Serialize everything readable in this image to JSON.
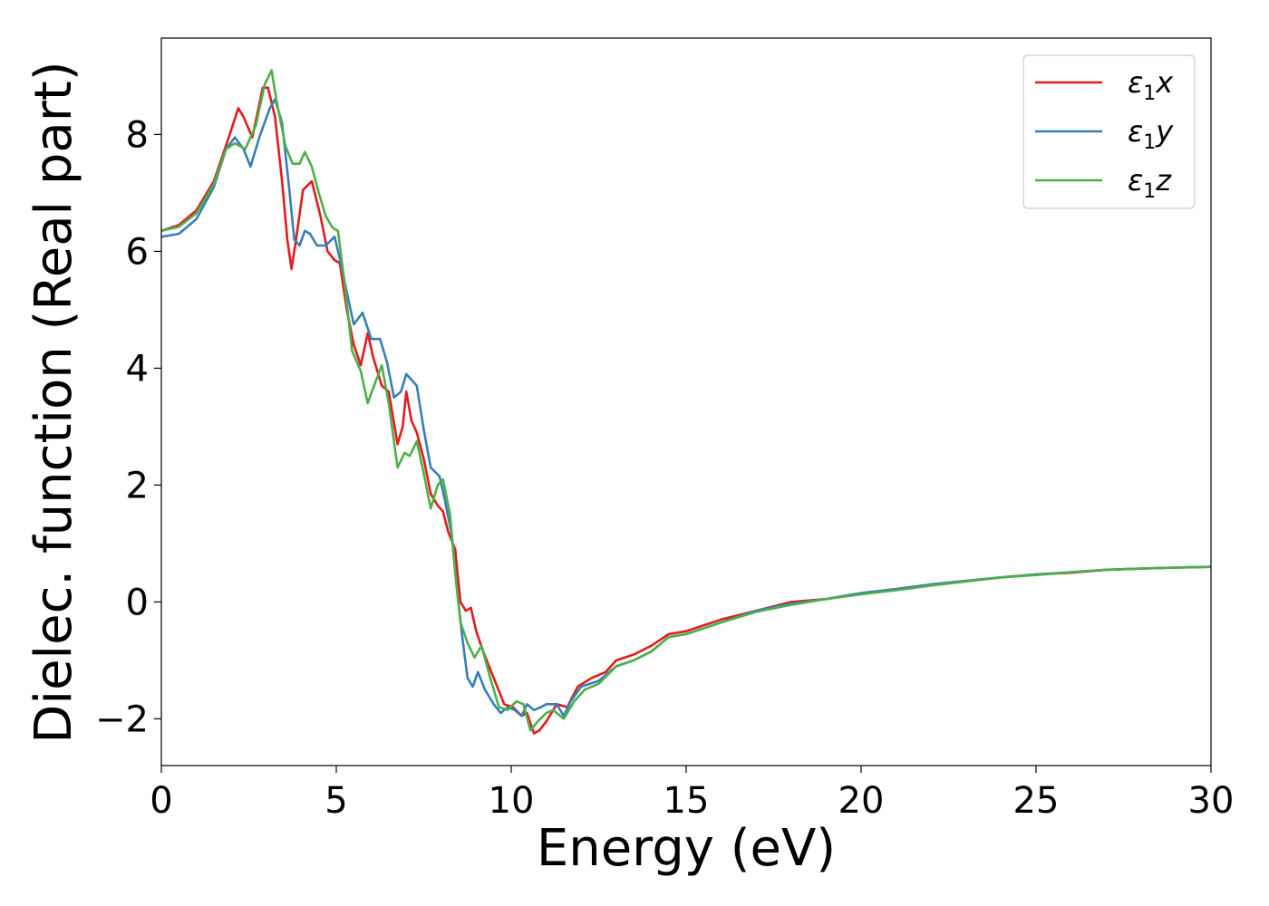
{
  "chart_data": {
    "type": "line",
    "title": "",
    "xlabel": "Energy (eV)",
    "ylabel": "Dielec. function (Real part)",
    "xlim": [
      0,
      30
    ],
    "ylim": [
      -2.8,
      9.65
    ],
    "xticks": [
      0,
      5,
      10,
      15,
      20,
      25,
      30
    ],
    "yticks": [
      -2,
      0,
      2,
      4,
      6,
      8
    ],
    "xtick_labels": [
      "0",
      "5",
      "10",
      "15",
      "20",
      "25",
      "30"
    ],
    "ytick_labels": [
      "−2",
      "0",
      "2",
      "4",
      "6",
      "8"
    ],
    "grid": false,
    "legend_position": "top-right",
    "series": [
      {
        "name": "ε₁x",
        "legend_main": "ε",
        "legend_sub": "1",
        "legend_tail": "x",
        "color": "#e41a1c",
        "points": [
          [
            0,
            6.35
          ],
          [
            0.5,
            6.45
          ],
          [
            1.0,
            6.7
          ],
          [
            1.5,
            7.2
          ],
          [
            1.9,
            7.9
          ],
          [
            2.2,
            8.45
          ],
          [
            2.35,
            8.3
          ],
          [
            2.6,
            7.95
          ],
          [
            2.9,
            8.8
          ],
          [
            3.05,
            8.8
          ],
          [
            3.25,
            8.3
          ],
          [
            3.45,
            7.2
          ],
          [
            3.6,
            6.2
          ],
          [
            3.72,
            5.7
          ],
          [
            3.85,
            6.2
          ],
          [
            4.05,
            7.05
          ],
          [
            4.3,
            7.2
          ],
          [
            4.55,
            6.6
          ],
          [
            4.75,
            6.0
          ],
          [
            4.95,
            5.85
          ],
          [
            5.1,
            5.8
          ],
          [
            5.3,
            5.0
          ],
          [
            5.5,
            4.4
          ],
          [
            5.7,
            4.05
          ],
          [
            5.9,
            4.6
          ],
          [
            6.05,
            4.2
          ],
          [
            6.3,
            3.7
          ],
          [
            6.5,
            3.6
          ],
          [
            6.75,
            2.7
          ],
          [
            6.9,
            3.0
          ],
          [
            7.0,
            3.6
          ],
          [
            7.15,
            3.1
          ],
          [
            7.3,
            2.9
          ],
          [
            7.5,
            2.45
          ],
          [
            7.7,
            1.85
          ],
          [
            7.9,
            1.65
          ],
          [
            8.05,
            1.55
          ],
          [
            8.2,
            1.2
          ],
          [
            8.4,
            0.9
          ],
          [
            8.55,
            0.0
          ],
          [
            8.7,
            -0.15
          ],
          [
            8.85,
            -0.1
          ],
          [
            9.0,
            -0.5
          ],
          [
            9.2,
            -0.85
          ],
          [
            9.5,
            -1.3
          ],
          [
            9.8,
            -1.75
          ],
          [
            10.05,
            -1.8
          ],
          [
            10.3,
            -1.95
          ],
          [
            10.45,
            -1.9
          ],
          [
            10.65,
            -2.25
          ],
          [
            10.8,
            -2.2
          ],
          [
            11.0,
            -2.05
          ],
          [
            11.3,
            -1.75
          ],
          [
            11.6,
            -1.8
          ],
          [
            11.9,
            -1.45
          ],
          [
            12.3,
            -1.3
          ],
          [
            12.7,
            -1.2
          ],
          [
            13.0,
            -1.0
          ],
          [
            13.5,
            -0.9
          ],
          [
            14.0,
            -0.75
          ],
          [
            14.5,
            -0.55
          ],
          [
            15.0,
            -0.5
          ],
          [
            15.5,
            -0.4
          ],
          [
            16.0,
            -0.3
          ],
          [
            17.0,
            -0.15
          ],
          [
            18.0,
            0.0
          ],
          [
            19.0,
            0.05
          ],
          [
            20.0,
            0.15
          ],
          [
            21.0,
            0.22
          ],
          [
            22.0,
            0.3
          ],
          [
            23.0,
            0.36
          ],
          [
            24.0,
            0.42
          ],
          [
            25.0,
            0.47
          ],
          [
            26.0,
            0.5
          ],
          [
            27.0,
            0.55
          ],
          [
            28.0,
            0.57
          ],
          [
            29.0,
            0.59
          ],
          [
            30.0,
            0.6
          ]
        ]
      },
      {
        "name": "ε₁y",
        "legend_main": "ε",
        "legend_sub": "1",
        "legend_tail": "y",
        "color": "#377eb8",
        "points": [
          [
            0,
            6.25
          ],
          [
            0.5,
            6.3
          ],
          [
            1.0,
            6.55
          ],
          [
            1.5,
            7.1
          ],
          [
            1.85,
            7.75
          ],
          [
            2.1,
            7.95
          ],
          [
            2.35,
            7.75
          ],
          [
            2.55,
            7.45
          ],
          [
            2.8,
            7.95
          ],
          [
            3.1,
            8.45
          ],
          [
            3.25,
            8.6
          ],
          [
            3.45,
            8.2
          ],
          [
            3.65,
            7.1
          ],
          [
            3.8,
            6.2
          ],
          [
            3.95,
            6.1
          ],
          [
            4.1,
            6.35
          ],
          [
            4.25,
            6.3
          ],
          [
            4.45,
            6.1
          ],
          [
            4.7,
            6.1
          ],
          [
            4.95,
            6.25
          ],
          [
            5.15,
            5.75
          ],
          [
            5.3,
            5.3
          ],
          [
            5.5,
            4.75
          ],
          [
            5.75,
            4.95
          ],
          [
            6.0,
            4.5
          ],
          [
            6.25,
            4.5
          ],
          [
            6.45,
            4.1
          ],
          [
            6.65,
            3.5
          ],
          [
            6.85,
            3.6
          ],
          [
            7.0,
            3.9
          ],
          [
            7.15,
            3.8
          ],
          [
            7.3,
            3.7
          ],
          [
            7.5,
            2.95
          ],
          [
            7.7,
            2.3
          ],
          [
            7.95,
            2.15
          ],
          [
            8.1,
            1.75
          ],
          [
            8.3,
            1.15
          ],
          [
            8.45,
            0.2
          ],
          [
            8.6,
            -0.6
          ],
          [
            8.75,
            -1.3
          ],
          [
            8.9,
            -1.45
          ],
          [
            9.05,
            -1.2
          ],
          [
            9.25,
            -1.5
          ],
          [
            9.5,
            -1.75
          ],
          [
            9.7,
            -1.9
          ],
          [
            9.9,
            -1.8
          ],
          [
            10.1,
            -1.85
          ],
          [
            10.3,
            -1.95
          ],
          [
            10.45,
            -1.75
          ],
          [
            10.65,
            -1.85
          ],
          [
            10.85,
            -1.8
          ],
          [
            11.0,
            -1.75
          ],
          [
            11.3,
            -1.75
          ],
          [
            11.5,
            -1.95
          ],
          [
            11.7,
            -1.7
          ],
          [
            12.0,
            -1.45
          ],
          [
            12.5,
            -1.35
          ],
          [
            13.0,
            -1.1
          ],
          [
            13.5,
            -1.0
          ],
          [
            14.0,
            -0.85
          ],
          [
            14.5,
            -0.6
          ],
          [
            15.0,
            -0.55
          ],
          [
            16.0,
            -0.35
          ],
          [
            17.0,
            -0.15
          ],
          [
            18.0,
            -0.03
          ],
          [
            19.0,
            0.05
          ],
          [
            20.0,
            0.15
          ],
          [
            21.0,
            0.22
          ],
          [
            22.0,
            0.3
          ],
          [
            23.0,
            0.36
          ],
          [
            24.0,
            0.42
          ],
          [
            25.0,
            0.47
          ],
          [
            26.0,
            0.51
          ],
          [
            27.0,
            0.55
          ],
          [
            28.0,
            0.57
          ],
          [
            29.0,
            0.59
          ],
          [
            30.0,
            0.6
          ]
        ]
      },
      {
        "name": "ε₁z",
        "legend_main": "ε",
        "legend_sub": "1",
        "legend_tail": "z",
        "color": "#4daf4a",
        "points": [
          [
            0,
            6.35
          ],
          [
            0.5,
            6.42
          ],
          [
            1.0,
            6.65
          ],
          [
            1.5,
            7.15
          ],
          [
            1.85,
            7.75
          ],
          [
            2.1,
            7.85
          ],
          [
            2.4,
            7.75
          ],
          [
            2.7,
            8.15
          ],
          [
            2.95,
            8.85
          ],
          [
            3.15,
            9.1
          ],
          [
            3.3,
            8.55
          ],
          [
            3.55,
            7.8
          ],
          [
            3.75,
            7.5
          ],
          [
            3.95,
            7.5
          ],
          [
            4.1,
            7.7
          ],
          [
            4.3,
            7.45
          ],
          [
            4.5,
            7.0
          ],
          [
            4.7,
            6.6
          ],
          [
            4.9,
            6.4
          ],
          [
            5.05,
            6.35
          ],
          [
            5.25,
            5.4
          ],
          [
            5.45,
            4.3
          ],
          [
            5.7,
            3.95
          ],
          [
            5.9,
            3.4
          ],
          [
            6.05,
            3.65
          ],
          [
            6.3,
            4.05
          ],
          [
            6.5,
            3.4
          ],
          [
            6.75,
            2.3
          ],
          [
            6.95,
            2.55
          ],
          [
            7.1,
            2.5
          ],
          [
            7.3,
            2.75
          ],
          [
            7.5,
            2.2
          ],
          [
            7.7,
            1.6
          ],
          [
            7.9,
            2.0
          ],
          [
            8.05,
            2.1
          ],
          [
            8.25,
            1.5
          ],
          [
            8.4,
            0.5
          ],
          [
            8.55,
            -0.35
          ],
          [
            8.75,
            -0.7
          ],
          [
            8.95,
            -0.95
          ],
          [
            9.15,
            -0.75
          ],
          [
            9.4,
            -1.3
          ],
          [
            9.65,
            -1.8
          ],
          [
            9.9,
            -1.85
          ],
          [
            10.15,
            -1.7
          ],
          [
            10.35,
            -1.75
          ],
          [
            10.55,
            -2.2
          ],
          [
            10.75,
            -2.05
          ],
          [
            11.0,
            -1.9
          ],
          [
            11.2,
            -1.85
          ],
          [
            11.5,
            -2.0
          ],
          [
            11.8,
            -1.7
          ],
          [
            12.1,
            -1.5
          ],
          [
            12.5,
            -1.4
          ],
          [
            13.0,
            -1.1
          ],
          [
            13.5,
            -1.0
          ],
          [
            14.0,
            -0.85
          ],
          [
            14.5,
            -0.6
          ],
          [
            15.0,
            -0.55
          ],
          [
            16.0,
            -0.35
          ],
          [
            17.0,
            -0.17
          ],
          [
            18.0,
            -0.05
          ],
          [
            19.0,
            0.05
          ],
          [
            20.0,
            0.13
          ],
          [
            21.0,
            0.2
          ],
          [
            22.0,
            0.28
          ],
          [
            23.0,
            0.35
          ],
          [
            24.0,
            0.42
          ],
          [
            25.0,
            0.46
          ],
          [
            26.0,
            0.51
          ],
          [
            27.0,
            0.55
          ],
          [
            28.0,
            0.57
          ],
          [
            29.0,
            0.59
          ],
          [
            30.0,
            0.6
          ]
        ]
      }
    ]
  }
}
